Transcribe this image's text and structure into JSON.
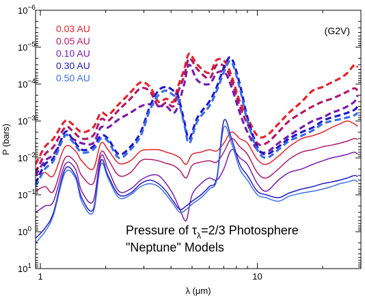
{
  "chart_data": {
    "type": "line",
    "xlabel": "λ (μm)",
    "ylabel": "P (bars)",
    "x_scale": "log",
    "y_scale": "log",
    "y_inverted": true,
    "xlim": [
      0.95,
      30
    ],
    "ylim": [
      10,
      1e-06
    ],
    "x_ticks": [
      {
        "value": 1,
        "label": "1"
      },
      {
        "value": 10,
        "label": "10"
      }
    ],
    "y_ticks": [
      {
        "value": 1e-06,
        "base": "10",
        "exp": "−6"
      },
      {
        "value": 1e-05,
        "base": "10",
        "exp": "−5"
      },
      {
        "value": 0.0001,
        "base": "10",
        "exp": "−4"
      },
      {
        "value": 0.001,
        "base": "10",
        "exp": "−3"
      },
      {
        "value": 0.01,
        "base": "10",
        "exp": "−2"
      },
      {
        "value": 0.1,
        "base": "10",
        "exp": "−1"
      },
      {
        "value": 1,
        "base": "10",
        "exp": "0"
      },
      {
        "value": 10,
        "base": "10",
        "exp": "1"
      }
    ],
    "annotations": {
      "star_type": "(G2V)",
      "title_line1_a": "Pressure of τ",
      "title_line1_sub": "λ",
      "title_line1_b": "=2/3 Photosphere",
      "title_line2": "\"Neptune\" Models"
    },
    "legend_position": "top-left",
    "series": [
      {
        "name": "0.03 AU",
        "color": "#e8202a",
        "dashed": {
          "x": [
            0.95,
            1.05,
            1.15,
            1.3,
            1.4,
            1.55,
            1.75,
            1.9,
            2.05,
            2.3,
            2.6,
            2.9,
            3.2,
            3.5,
            3.8,
            4.1,
            4.3,
            4.6,
            4.85,
            5.3,
            6.0,
            6.5,
            7.1,
            7.6,
            8.3,
            9.0,
            10.0,
            11.0,
            12.5,
            14.0,
            16.0,
            18.0,
            20.0,
            22.0,
            24.0,
            26.0,
            28.0,
            29.0
          ],
          "y": [
            0.015,
            0.005,
            0.003,
            0.001,
            0.0012,
            0.002,
            0.0015,
            0.0006,
            0.0007,
            0.00035,
            0.00017,
            9e-05,
            0.00012,
            0.0003,
            0.00025,
            0.0003,
            0.00012,
            4e-05,
            1.5e-05,
            3e-05,
            5e-05,
            2.2e-05,
            2.5e-05,
            6e-05,
            0.0003,
            0.0008,
            0.0025,
            0.0025,
            0.0012,
            0.0006,
            0.0003,
            0.00015,
            0.00012,
            9e-05,
            7e-05,
            5e-05,
            3e-05,
            3.5e-05
          ]
        },
        "solid": {
          "x": [
            0.95,
            1.05,
            1.15,
            1.3,
            1.45,
            1.55,
            1.75,
            1.9,
            2.05,
            2.3,
            2.6,
            2.9,
            3.2,
            3.5,
            3.8,
            4.1,
            4.4,
            4.7,
            5.0,
            5.5,
            6.0,
            6.5,
            7.0,
            7.6,
            8.3,
            9.0,
            10.0,
            11.0,
            12.5,
            14.0,
            16.0,
            18.0,
            20.0,
            22.0,
            24.0,
            26.0,
            28.0,
            29.0
          ],
          "y": [
            0.03,
            0.025,
            0.03,
            0.005,
            0.0065,
            0.012,
            0.02,
            0.004,
            0.006,
            0.014,
            0.012,
            0.0065,
            0.006,
            0.006,
            0.007,
            0.008,
            0.01,
            0.015,
            0.008,
            0.007,
            0.006,
            0.0065,
            0.004,
            0.002,
            0.003,
            0.004,
            0.011,
            0.015,
            0.009,
            0.005,
            0.003,
            0.0025,
            0.002,
            0.0015,
            0.0012,
            0.001,
            0.0012,
            0.0014
          ]
        }
      },
      {
        "name": "0.05 AU",
        "color": "#b0186a",
        "dashed": {
          "x": [
            0.95,
            1.05,
            1.15,
            1.3,
            1.4,
            1.55,
            1.75,
            1.9,
            2.05,
            2.3,
            2.6,
            2.9,
            3.2,
            3.5,
            3.8,
            4.1,
            4.3,
            4.6,
            4.85,
            5.3,
            6.0,
            6.5,
            7.1,
            7.6,
            8.3,
            9.0,
            10.0,
            11.0,
            12.5,
            14.0,
            16.0,
            18.0,
            20.0,
            22.0,
            24.0,
            26.0,
            28.0,
            29.0
          ],
          "y": [
            0.025,
            0.008,
            0.005,
            0.0015,
            0.0018,
            0.003,
            0.0025,
            0.0009,
            0.001,
            0.0005,
            0.00025,
            0.00013,
            0.00016,
            0.0004,
            0.00032,
            0.0004,
            0.00017,
            6e-05,
            2e-05,
            4e-05,
            7e-05,
            3e-05,
            3.5e-05,
            8e-05,
            0.0004,
            0.0012,
            0.004,
            0.004,
            0.002,
            0.001,
            0.0006,
            0.0004,
            0.0003,
            0.00025,
            0.0002,
            0.00016,
            0.00013,
            0.00015
          ]
        },
        "solid": {
          "x": [
            0.95,
            1.05,
            1.15,
            1.3,
            1.45,
            1.55,
            1.75,
            1.9,
            2.05,
            2.3,
            2.6,
            2.9,
            3.2,
            3.5,
            3.8,
            4.1,
            4.4,
            4.7,
            5.0,
            5.5,
            6.0,
            6.5,
            7.0,
            7.6,
            8.3,
            9.0,
            10.0,
            11.0,
            12.5,
            14.0,
            16.0,
            18.0,
            20.0,
            22.0,
            24.0,
            26.0,
            28.0,
            29.0
          ],
          "y": [
            0.08,
            0.06,
            0.08,
            0.01,
            0.013,
            0.03,
            0.05,
            0.007,
            0.011,
            0.03,
            0.025,
            0.012,
            0.011,
            0.012,
            0.014,
            0.016,
            0.022,
            0.035,
            0.016,
            0.013,
            0.012,
            0.013,
            0.007,
            0.003,
            0.005,
            0.008,
            0.025,
            0.035,
            0.02,
            0.011,
            0.007,
            0.006,
            0.005,
            0.0045,
            0.004,
            0.0035,
            0.003,
            0.0032
          ]
        }
      },
      {
        "name": "0.10 AU",
        "color": "#7a1ab0",
        "dashed": {
          "x": [
            0.95,
            1.05,
            1.15,
            1.3,
            1.4,
            1.55,
            1.75,
            1.9,
            2.05,
            2.3,
            2.6,
            2.9,
            3.2,
            3.5,
            3.8,
            4.1,
            4.3,
            4.6,
            4.85,
            5.3,
            6.0,
            6.5,
            7.1,
            7.6,
            8.3,
            9.0,
            10.0,
            11.0,
            12.5,
            14.0,
            16.0,
            18.0,
            20.0,
            22.0,
            24.0,
            26.0,
            28.0,
            29.0
          ],
          "y": [
            0.03,
            0.012,
            0.008,
            0.0025,
            0.003,
            0.004,
            0.004,
            0.0015,
            0.0015,
            0.0009,
            0.0006,
            0.0004,
            0.00035,
            0.0004,
            0.0004,
            0.0006,
            0.0004,
            0.0001,
            3e-05,
            8e-05,
            0.0001,
            5e-05,
            5e-05,
            0.00012,
            0.0006,
            0.002,
            0.006,
            0.007,
            0.004,
            0.0025,
            0.0015,
            0.001,
            0.0008,
            0.0006,
            0.0005,
            0.0004,
            0.0003,
            0.0002
          ]
        },
        "solid": {
          "x": [
            0.95,
            1.05,
            1.15,
            1.3,
            1.45,
            1.55,
            1.75,
            1.9,
            2.05,
            2.3,
            2.6,
            2.9,
            3.2,
            3.5,
            3.8,
            4.1,
            4.4,
            4.7,
            5.0,
            5.5,
            6.0,
            6.5,
            7.0,
            7.6,
            8.3,
            9.0,
            10.0,
            11.0,
            12.5,
            14.0,
            16.0,
            18.0,
            20.0,
            22.0,
            24.0,
            26.0,
            28.0,
            29.0
          ],
          "y": [
            0.3,
            0.2,
            0.15,
            0.015,
            0.02,
            0.08,
            0.15,
            0.009,
            0.02,
            0.08,
            0.07,
            0.04,
            0.03,
            0.03,
            0.05,
            0.1,
            0.25,
            0.5,
            0.1,
            0.05,
            0.035,
            0.04,
            0.02,
            0.006,
            0.01,
            0.015,
            0.05,
            0.08,
            0.04,
            0.025,
            0.02,
            0.015,
            0.012,
            0.01,
            0.009,
            0.008,
            0.007,
            0.008
          ]
        }
      },
      {
        "name": "0.30 AU",
        "color": "#1d18c8",
        "dashed": {
          "x": [
            0.95,
            1.05,
            1.15,
            1.3,
            1.4,
            1.55,
            1.75,
            1.9,
            2.05,
            2.3,
            2.6,
            2.9,
            3.2,
            3.5,
            3.8,
            4.1,
            4.3,
            4.6,
            4.85,
            5.3,
            6.0,
            6.5,
            7.1,
            7.6,
            8.3,
            9.0,
            10.0,
            11.0,
            12.5,
            14.0,
            16.0,
            18.0,
            20.0,
            22.0,
            24.0,
            26.0,
            28.0,
            29.0
          ],
          "y": [
            0.05,
            0.015,
            0.01,
            0.002,
            0.003,
            0.006,
            0.005,
            0.0025,
            0.003,
            0.008,
            0.005,
            0.002,
            0.0004,
            0.00015,
            0.00012,
            0.00015,
            0.0002,
            0.001,
            0.003,
            0.0008,
            0.0003,
            0.00012,
            3e-05,
            2e-05,
            0.0001,
            0.0008,
            0.005,
            0.008,
            0.005,
            0.003,
            0.002,
            0.0015,
            0.001,
            0.0008,
            0.0007,
            0.0006,
            0.0005,
            0.0004
          ]
        },
        "solid": {
          "x": [
            0.95,
            1.05,
            1.15,
            1.3,
            1.45,
            1.55,
            1.75,
            1.9,
            2.05,
            2.3,
            2.6,
            2.9,
            3.2,
            3.5,
            3.8,
            4.1,
            4.4,
            4.7,
            5.0,
            5.5,
            6.0,
            6.5,
            7.0,
            7.6,
            8.3,
            9.0,
            10.0,
            11.0,
            12.5,
            14.0,
            16.0,
            18.0,
            20.0,
            22.0,
            24.0,
            26.0,
            28.0,
            29.0
          ],
          "y": [
            1.5,
            0.8,
            0.3,
            0.02,
            0.03,
            0.12,
            0.25,
            0.012,
            0.03,
            0.1,
            0.09,
            0.05,
            0.04,
            0.05,
            0.08,
            0.15,
            0.25,
            0.2,
            0.15,
            0.1,
            0.06,
            0.035,
            0.001,
            0.003,
            0.015,
            0.03,
            0.08,
            0.1,
            0.12,
            0.09,
            0.07,
            0.06,
            0.05,
            0.045,
            0.04,
            0.035,
            0.03,
            0.032
          ]
        }
      },
      {
        "name": "0.50 AU",
        "color": "#3a6ee8",
        "dashed": {
          "x": [
            0.95,
            1.05,
            1.15,
            1.3,
            1.4,
            1.55,
            1.75,
            1.9,
            2.05,
            2.3,
            2.6,
            2.9,
            3.2,
            3.5,
            3.8,
            4.1,
            4.3,
            4.6,
            4.85,
            5.3,
            6.0,
            6.5,
            7.1,
            7.6,
            8.3,
            9.0,
            10.0,
            11.0,
            12.5,
            14.0,
            16.0,
            18.0,
            20.0,
            22.0,
            24.0,
            26.0,
            28.0,
            29.0
          ],
          "y": [
            0.06,
            0.02,
            0.012,
            0.0025,
            0.0035,
            0.007,
            0.006,
            0.003,
            0.0035,
            0.01,
            0.006,
            0.0025,
            0.0005,
            0.0002,
            0.00015,
            0.0002,
            0.00025,
            0.0012,
            0.004,
            0.001,
            0.0004,
            0.00015,
            4e-05,
            2.5e-05,
            0.00013,
            0.001,
            0.006,
            0.01,
            0.006,
            0.0035,
            0.0025,
            0.0018,
            0.0012,
            0.001,
            0.0009,
            0.0008,
            0.0007,
            0.0006
          ]
        },
        "solid": {
          "x": [
            0.95,
            1.05,
            1.15,
            1.3,
            1.45,
            1.55,
            1.75,
            1.9,
            2.05,
            2.3,
            2.6,
            2.9,
            3.2,
            3.5,
            3.8,
            4.1,
            4.4,
            4.7,
            5.0,
            5.5,
            6.0,
            6.5,
            7.0,
            7.6,
            8.3,
            9.0,
            10.0,
            11.0,
            12.5,
            14.0,
            16.0,
            18.0,
            20.0,
            22.0,
            24.0,
            26.0,
            28.0,
            29.0
          ],
          "y": [
            2.0,
            1.0,
            0.35,
            0.025,
            0.035,
            0.15,
            0.3,
            0.015,
            0.035,
            0.12,
            0.1,
            0.06,
            0.05,
            0.06,
            0.1,
            0.18,
            0.3,
            0.25,
            0.18,
            0.12,
            0.07,
            0.04,
            0.0015,
            0.004,
            0.02,
            0.04,
            0.1,
            0.12,
            0.15,
            0.11,
            0.09,
            0.08,
            0.07,
            0.06,
            0.05,
            0.045,
            0.04,
            0.045
          ]
        }
      }
    ]
  }
}
